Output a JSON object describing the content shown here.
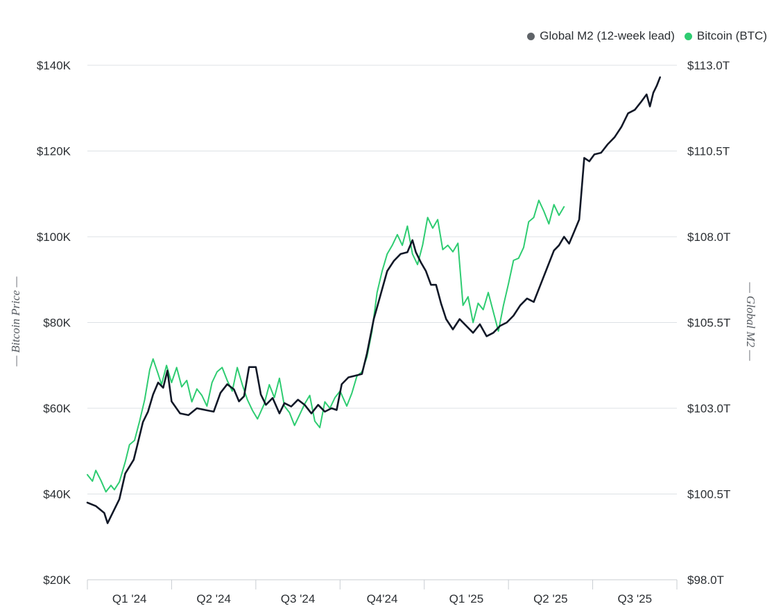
{
  "chart_data": {
    "type": "line",
    "legend": {
      "placement": "top-right",
      "items": [
        {
          "name": "Global M2 (12-week lead)",
          "color": "#5f6368"
        },
        {
          "name": "Bitcoin (BTC)",
          "color": "#2ecc71"
        }
      ]
    },
    "y_left": {
      "label": "— Bitcoin Price —",
      "ticks": [
        "$140K",
        "$120K",
        "$100K",
        "$80K",
        "$60K",
        "$40K",
        "$20K"
      ],
      "range": [
        20000,
        140000
      ]
    },
    "y_right": {
      "label": "— Global M2 —",
      "ticks": [
        "$113.0T",
        "$110.5T",
        "$108.0T",
        "$105.5T",
        "$103.0T",
        "$100.5T",
        "$98.0T"
      ],
      "range": [
        98.0,
        113.0
      ]
    },
    "x": {
      "ticks": [
        "Q1 '24",
        "Q2 '24",
        "Q3 '24",
        "Q4'24",
        "Q1 '25",
        "Q2 '25",
        "Q3 '25"
      ],
      "range": [
        0,
        7
      ]
    },
    "grid": true,
    "series": [
      {
        "name": "Global M2 (12-week lead)",
        "color": "#111827",
        "axis": "right",
        "points": [
          [
            0.0,
            100.25
          ],
          [
            0.1,
            100.15
          ],
          [
            0.2,
            99.95
          ],
          [
            0.24,
            99.65
          ],
          [
            0.3,
            99.95
          ],
          [
            0.38,
            100.35
          ],
          [
            0.45,
            101.1
          ],
          [
            0.55,
            101.5
          ],
          [
            0.6,
            102.0
          ],
          [
            0.66,
            102.6
          ],
          [
            0.72,
            102.9
          ],
          [
            0.78,
            103.4
          ],
          [
            0.84,
            103.75
          ],
          [
            0.9,
            103.6
          ],
          [
            0.95,
            104.1
          ],
          [
            1.0,
            103.2
          ],
          [
            1.1,
            102.85
          ],
          [
            1.2,
            102.8
          ],
          [
            1.3,
            103.0
          ],
          [
            1.4,
            102.95
          ],
          [
            1.5,
            102.9
          ],
          [
            1.58,
            103.45
          ],
          [
            1.66,
            103.7
          ],
          [
            1.74,
            103.55
          ],
          [
            1.8,
            103.2
          ],
          [
            1.86,
            103.35
          ],
          [
            1.92,
            104.2
          ],
          [
            2.0,
            104.2
          ],
          [
            2.06,
            103.4
          ],
          [
            2.12,
            103.1
          ],
          [
            2.2,
            103.3
          ],
          [
            2.28,
            102.85
          ],
          [
            2.34,
            103.15
          ],
          [
            2.42,
            103.05
          ],
          [
            2.5,
            103.25
          ],
          [
            2.58,
            103.1
          ],
          [
            2.66,
            102.85
          ],
          [
            2.74,
            103.1
          ],
          [
            2.82,
            102.9
          ],
          [
            2.9,
            103.0
          ],
          [
            2.96,
            102.95
          ],
          [
            3.02,
            103.7
          ],
          [
            3.1,
            103.9
          ],
          [
            3.18,
            103.95
          ],
          [
            3.26,
            104.0
          ],
          [
            3.32,
            104.6
          ],
          [
            3.4,
            105.6
          ],
          [
            3.48,
            106.3
          ],
          [
            3.56,
            107.0
          ],
          [
            3.64,
            107.3
          ],
          [
            3.72,
            107.5
          ],
          [
            3.8,
            107.55
          ],
          [
            3.86,
            107.9
          ],
          [
            3.9,
            107.55
          ],
          [
            3.96,
            107.25
          ],
          [
            4.02,
            107.0
          ],
          [
            4.08,
            106.6
          ],
          [
            4.14,
            106.6
          ],
          [
            4.2,
            106.05
          ],
          [
            4.26,
            105.6
          ],
          [
            4.34,
            105.3
          ],
          [
            4.42,
            105.6
          ],
          [
            4.5,
            105.4
          ],
          [
            4.58,
            105.2
          ],
          [
            4.66,
            105.45
          ],
          [
            4.74,
            105.1
          ],
          [
            4.82,
            105.2
          ],
          [
            4.9,
            105.4
          ],
          [
            4.98,
            105.5
          ],
          [
            5.06,
            105.7
          ],
          [
            5.14,
            106.0
          ],
          [
            5.22,
            106.2
          ],
          [
            5.3,
            106.1
          ],
          [
            5.38,
            106.6
          ],
          [
            5.46,
            107.1
          ],
          [
            5.54,
            107.6
          ],
          [
            5.6,
            107.75
          ],
          [
            5.66,
            108.0
          ],
          [
            5.72,
            107.8
          ],
          [
            5.78,
            108.15
          ],
          [
            5.84,
            108.5
          ],
          [
            5.9,
            110.3
          ],
          [
            5.96,
            110.2
          ],
          [
            6.02,
            110.4
          ],
          [
            6.1,
            110.45
          ],
          [
            6.18,
            110.7
          ],
          [
            6.26,
            110.9
          ],
          [
            6.34,
            111.2
          ],
          [
            6.42,
            111.6
          ],
          [
            6.5,
            111.7
          ],
          [
            6.58,
            111.95
          ],
          [
            6.64,
            112.15
          ],
          [
            6.68,
            111.8
          ],
          [
            6.72,
            112.2
          ],
          [
            6.76,
            112.4
          ],
          [
            6.8,
            112.65
          ]
        ]
      },
      {
        "name": "Bitcoin (BTC)",
        "color": "#2ecc71",
        "axis": "left",
        "points": [
          [
            0.0,
            44500
          ],
          [
            0.06,
            43000
          ],
          [
            0.1,
            45500
          ],
          [
            0.16,
            43200
          ],
          [
            0.22,
            40500
          ],
          [
            0.28,
            42000
          ],
          [
            0.32,
            41000
          ],
          [
            0.38,
            42800
          ],
          [
            0.45,
            47500
          ],
          [
            0.5,
            51500
          ],
          [
            0.56,
            52500
          ],
          [
            0.62,
            57000
          ],
          [
            0.68,
            62000
          ],
          [
            0.74,
            69000
          ],
          [
            0.78,
            71500
          ],
          [
            0.84,
            68000
          ],
          [
            0.88,
            65500
          ],
          [
            0.94,
            70000
          ],
          [
            1.0,
            66000
          ],
          [
            1.06,
            69500
          ],
          [
            1.12,
            65000
          ],
          [
            1.18,
            66500
          ],
          [
            1.24,
            61500
          ],
          [
            1.3,
            64500
          ],
          [
            1.36,
            63000
          ],
          [
            1.42,
            60500
          ],
          [
            1.48,
            66000
          ],
          [
            1.54,
            68500
          ],
          [
            1.6,
            69500
          ],
          [
            1.66,
            66500
          ],
          [
            1.72,
            64000
          ],
          [
            1.78,
            69500
          ],
          [
            1.84,
            65500
          ],
          [
            1.9,
            62000
          ],
          [
            1.96,
            59500
          ],
          [
            2.02,
            57500
          ],
          [
            2.1,
            61000
          ],
          [
            2.16,
            65500
          ],
          [
            2.22,
            62500
          ],
          [
            2.28,
            67000
          ],
          [
            2.34,
            60500
          ],
          [
            2.4,
            59000
          ],
          [
            2.46,
            56000
          ],
          [
            2.52,
            58500
          ],
          [
            2.58,
            61000
          ],
          [
            2.64,
            63000
          ],
          [
            2.7,
            57000
          ],
          [
            2.76,
            55500
          ],
          [
            2.82,
            61500
          ],
          [
            2.88,
            60000
          ],
          [
            2.94,
            62500
          ],
          [
            3.0,
            64000
          ],
          [
            3.08,
            60500
          ],
          [
            3.14,
            63500
          ],
          [
            3.2,
            67500
          ],
          [
            3.26,
            68500
          ],
          [
            3.32,
            72000
          ],
          [
            3.38,
            78000
          ],
          [
            3.44,
            87000
          ],
          [
            3.5,
            92000
          ],
          [
            3.56,
            96000
          ],
          [
            3.62,
            98000
          ],
          [
            3.68,
            100500
          ],
          [
            3.74,
            98000
          ],
          [
            3.8,
            102500
          ],
          [
            3.86,
            96000
          ],
          [
            3.92,
            93500
          ],
          [
            3.98,
            98000
          ],
          [
            4.04,
            104500
          ],
          [
            4.1,
            102000
          ],
          [
            4.16,
            104000
          ],
          [
            4.22,
            97000
          ],
          [
            4.28,
            98000
          ],
          [
            4.34,
            96500
          ],
          [
            4.4,
            98500
          ],
          [
            4.46,
            84000
          ],
          [
            4.52,
            86000
          ],
          [
            4.58,
            80000
          ],
          [
            4.64,
            84500
          ],
          [
            4.7,
            83000
          ],
          [
            4.76,
            87000
          ],
          [
            4.82,
            82500
          ],
          [
            4.88,
            78000
          ],
          [
            4.94,
            84000
          ],
          [
            5.0,
            89000
          ],
          [
            5.06,
            94500
          ],
          [
            5.12,
            95000
          ],
          [
            5.18,
            97500
          ],
          [
            5.24,
            103500
          ],
          [
            5.3,
            104500
          ],
          [
            5.36,
            108500
          ],
          [
            5.42,
            106000
          ],
          [
            5.48,
            103000
          ],
          [
            5.54,
            107500
          ],
          [
            5.6,
            105000
          ],
          [
            5.66,
            107000
          ]
        ]
      }
    ]
  }
}
